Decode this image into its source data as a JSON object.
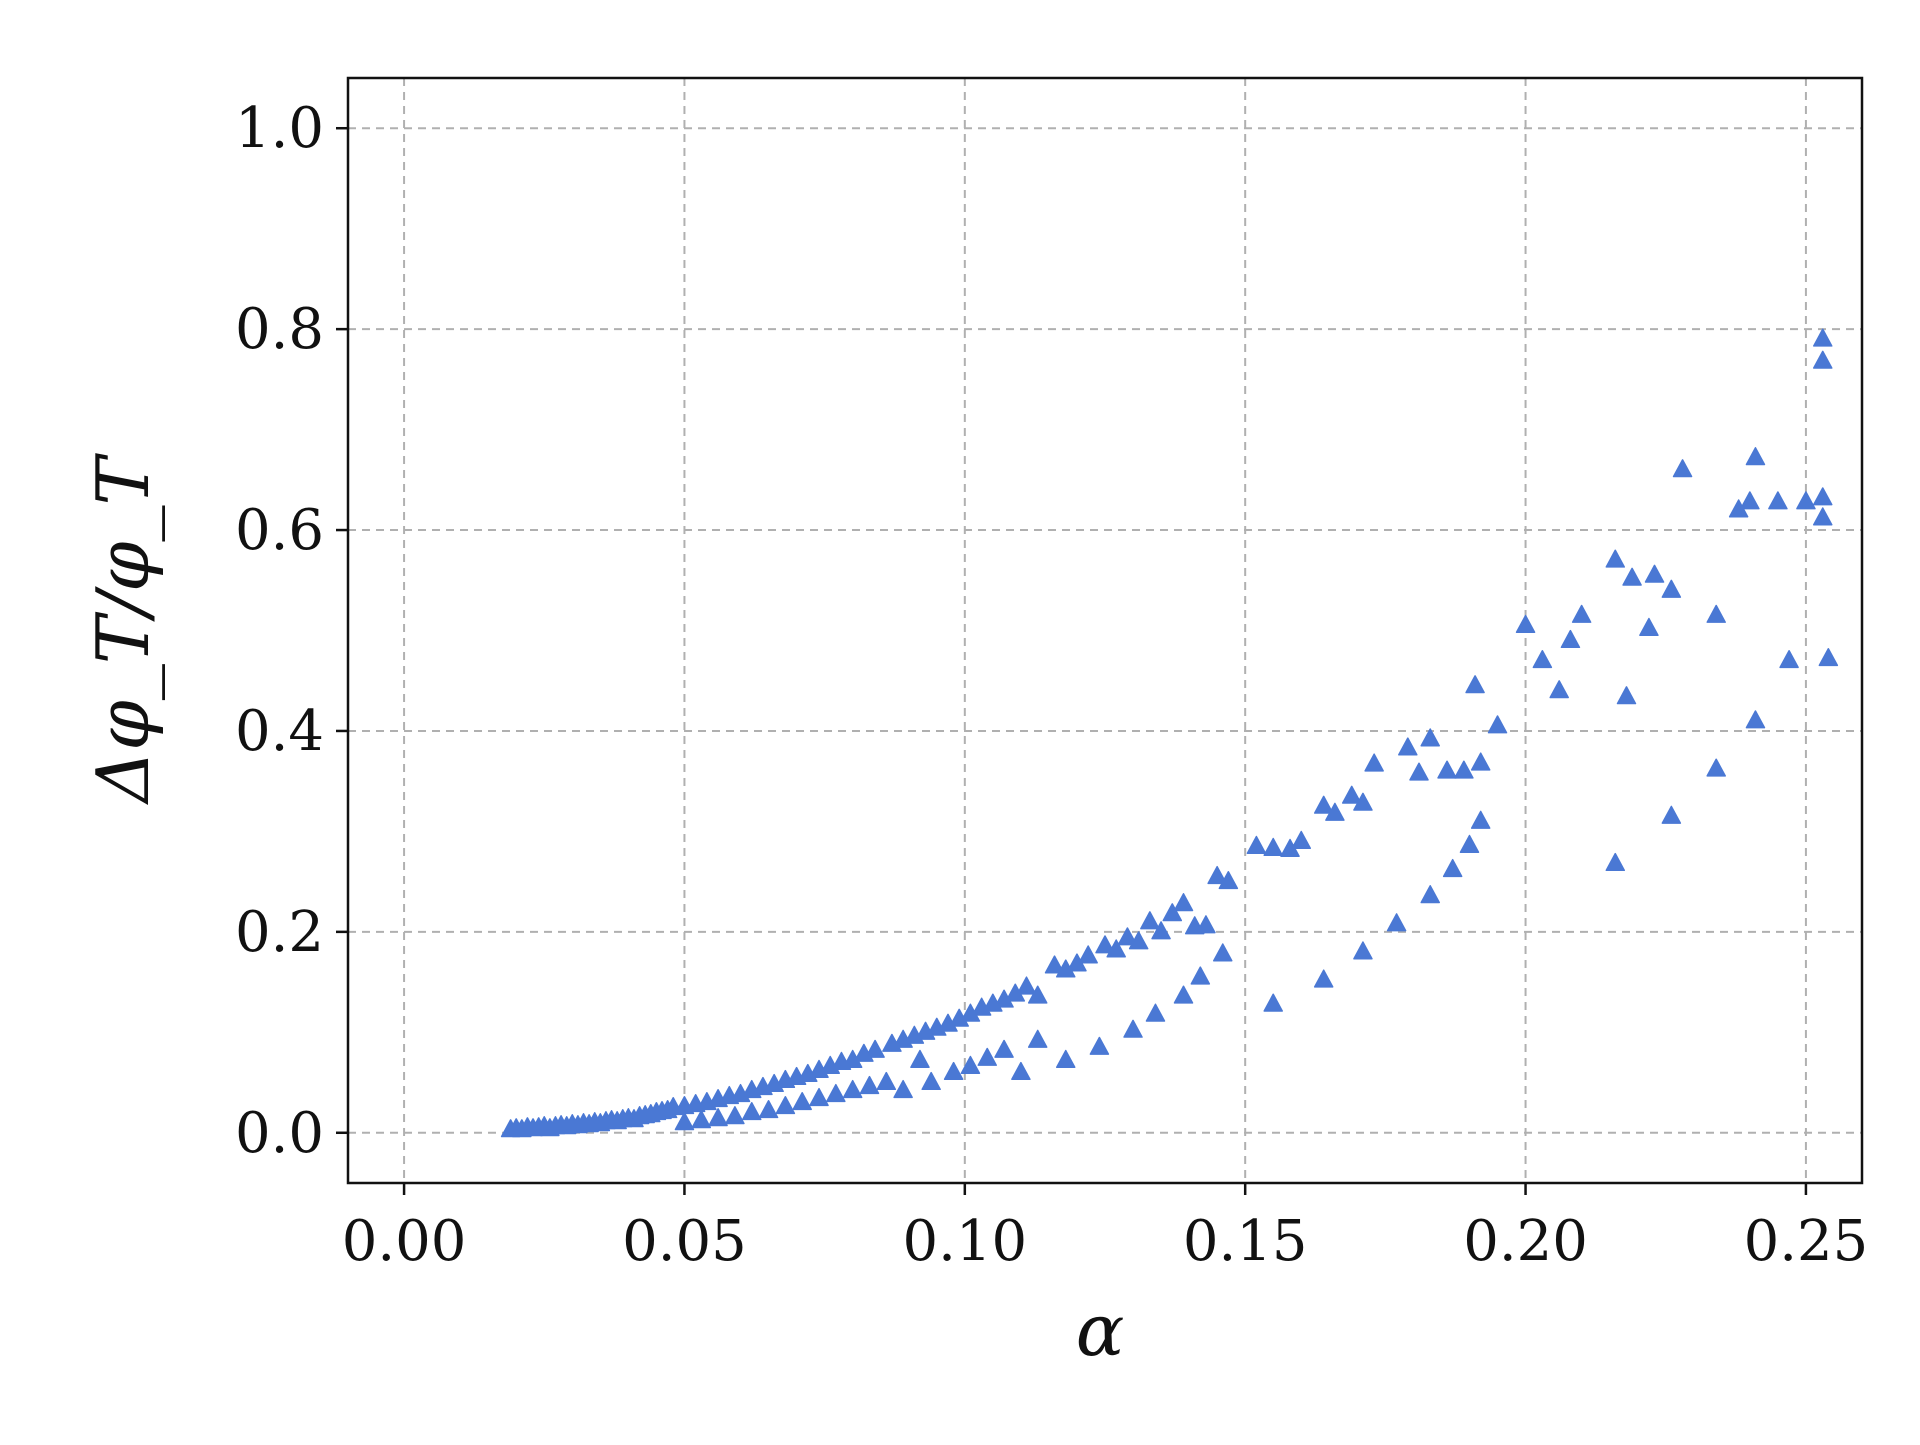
{
  "chart_data": {
    "type": "scatter",
    "title": "",
    "xlabel": "α",
    "ylabel": "Δφ_T/φ_T",
    "xlim": [
      -0.01,
      0.26
    ],
    "ylim": [
      -0.05,
      1.05
    ],
    "xticks": [
      0.0,
      0.05,
      0.1,
      0.15,
      0.2,
      0.25
    ],
    "xtick_labels": [
      "0.00",
      "0.05",
      "0.10",
      "0.15",
      "0.20",
      "0.25"
    ],
    "yticks": [
      0.0,
      0.2,
      0.4,
      0.6,
      0.8,
      1.0
    ],
    "ytick_labels": [
      "0.0",
      "0.2",
      "0.4",
      "0.6",
      "0.8",
      "1.0"
    ],
    "grid": true,
    "marker": "triangle",
    "marker_color": "#4a78d4",
    "series": [
      {
        "name": "",
        "points": [
          [
            0.019,
            0.003
          ],
          [
            0.02,
            0.004
          ],
          [
            0.021,
            0.003
          ],
          [
            0.022,
            0.005
          ],
          [
            0.023,
            0.004
          ],
          [
            0.024,
            0.005
          ],
          [
            0.025,
            0.006
          ],
          [
            0.026,
            0.004
          ],
          [
            0.027,
            0.006
          ],
          [
            0.028,
            0.007
          ],
          [
            0.029,
            0.006
          ],
          [
            0.03,
            0.008
          ],
          [
            0.031,
            0.007
          ],
          [
            0.032,
            0.009
          ],
          [
            0.033,
            0.008
          ],
          [
            0.034,
            0.01
          ],
          [
            0.035,
            0.009
          ],
          [
            0.036,
            0.011
          ],
          [
            0.037,
            0.012
          ],
          [
            0.038,
            0.011
          ],
          [
            0.039,
            0.013
          ],
          [
            0.04,
            0.014
          ],
          [
            0.041,
            0.013
          ],
          [
            0.042,
            0.016
          ],
          [
            0.043,
            0.017
          ],
          [
            0.044,
            0.018
          ],
          [
            0.045,
            0.02
          ],
          [
            0.046,
            0.021
          ],
          [
            0.047,
            0.022
          ],
          [
            0.048,
            0.025
          ],
          [
            0.05,
            0.026
          ],
          [
            0.052,
            0.028
          ],
          [
            0.054,
            0.03
          ],
          [
            0.056,
            0.033
          ],
          [
            0.058,
            0.036
          ],
          [
            0.06,
            0.038
          ],
          [
            0.062,
            0.042
          ],
          [
            0.064,
            0.045
          ],
          [
            0.066,
            0.048
          ],
          [
            0.068,
            0.052
          ],
          [
            0.07,
            0.055
          ],
          [
            0.072,
            0.058
          ],
          [
            0.074,
            0.062
          ],
          [
            0.076,
            0.066
          ],
          [
            0.078,
            0.07
          ],
          [
            0.08,
            0.072
          ],
          [
            0.082,
            0.078
          ],
          [
            0.084,
            0.082
          ],
          [
            0.087,
            0.088
          ],
          [
            0.089,
            0.092
          ],
          [
            0.091,
            0.096
          ],
          [
            0.093,
            0.1
          ],
          [
            0.095,
            0.104
          ],
          [
            0.097,
            0.108
          ],
          [
            0.099,
            0.113
          ],
          [
            0.101,
            0.118
          ],
          [
            0.103,
            0.124
          ],
          [
            0.105,
            0.128
          ],
          [
            0.107,
            0.132
          ],
          [
            0.109,
            0.138
          ],
          [
            0.111,
            0.145
          ],
          [
            0.113,
            0.136
          ],
          [
            0.116,
            0.166
          ],
          [
            0.118,
            0.162
          ],
          [
            0.12,
            0.168
          ],
          [
            0.122,
            0.176
          ],
          [
            0.125,
            0.186
          ],
          [
            0.127,
            0.182
          ],
          [
            0.129,
            0.194
          ],
          [
            0.131,
            0.19
          ],
          [
            0.133,
            0.21
          ],
          [
            0.135,
            0.2
          ],
          [
            0.137,
            0.218
          ],
          [
            0.139,
            0.228
          ],
          [
            0.141,
            0.205
          ],
          [
            0.143,
            0.206
          ],
          [
            0.145,
            0.255
          ],
          [
            0.147,
            0.25
          ],
          [
            0.152,
            0.285
          ],
          [
            0.155,
            0.283
          ],
          [
            0.158,
            0.282
          ],
          [
            0.16,
            0.29
          ],
          [
            0.164,
            0.325
          ],
          [
            0.166,
            0.318
          ],
          [
            0.169,
            0.335
          ],
          [
            0.171,
            0.328
          ],
          [
            0.173,
            0.367
          ],
          [
            0.179,
            0.383
          ],
          [
            0.181,
            0.358
          ],
          [
            0.183,
            0.392
          ],
          [
            0.186,
            0.36
          ],
          [
            0.189,
            0.36
          ],
          [
            0.191,
            0.445
          ],
          [
            0.192,
            0.368
          ],
          [
            0.2,
            0.505
          ],
          [
            0.203,
            0.47
          ],
          [
            0.206,
            0.44
          ],
          [
            0.208,
            0.49
          ],
          [
            0.21,
            0.515
          ],
          [
            0.216,
            0.57
          ],
          [
            0.219,
            0.552
          ],
          [
            0.223,
            0.555
          ],
          [
            0.226,
            0.54
          ],
          [
            0.228,
            0.66
          ],
          [
            0.234,
            0.515
          ],
          [
            0.238,
            0.62
          ],
          [
            0.24,
            0.628
          ],
          [
            0.241,
            0.672
          ],
          [
            0.245,
            0.628
          ],
          [
            0.25,
            0.628
          ],
          [
            0.253,
            0.79
          ],
          [
            0.253,
            0.768
          ],
          [
            0.253,
            0.632
          ],
          [
            0.253,
            0.612
          ],
          [
            0.254,
            0.472
          ],
          [
            0.05,
            0.01
          ],
          [
            0.053,
            0.012
          ],
          [
            0.056,
            0.014
          ],
          [
            0.059,
            0.016
          ],
          [
            0.062,
            0.02
          ],
          [
            0.065,
            0.022
          ],
          [
            0.068,
            0.026
          ],
          [
            0.071,
            0.03
          ],
          [
            0.074,
            0.034
          ],
          [
            0.077,
            0.038
          ],
          [
            0.08,
            0.042
          ],
          [
            0.083,
            0.046
          ],
          [
            0.086,
            0.05
          ],
          [
            0.089,
            0.042
          ],
          [
            0.092,
            0.072
          ],
          [
            0.094,
            0.05
          ],
          [
            0.098,
            0.06
          ],
          [
            0.101,
            0.066
          ],
          [
            0.104,
            0.074
          ],
          [
            0.107,
            0.082
          ],
          [
            0.11,
            0.06
          ],
          [
            0.113,
            0.092
          ],
          [
            0.118,
            0.072
          ],
          [
            0.124,
            0.085
          ],
          [
            0.13,
            0.102
          ],
          [
            0.134,
            0.118
          ],
          [
            0.139,
            0.136
          ],
          [
            0.142,
            0.155
          ],
          [
            0.146,
            0.178
          ],
          [
            0.155,
            0.128
          ],
          [
            0.164,
            0.152
          ],
          [
            0.171,
            0.18
          ],
          [
            0.177,
            0.208
          ],
          [
            0.183,
            0.236
          ],
          [
            0.187,
            0.262
          ],
          [
            0.19,
            0.286
          ],
          [
            0.192,
            0.31
          ],
          [
            0.195,
            0.405
          ],
          [
            0.216,
            0.268
          ],
          [
            0.218,
            0.434
          ],
          [
            0.222,
            0.502
          ],
          [
            0.226,
            0.315
          ],
          [
            0.234,
            0.362
          ],
          [
            0.241,
            0.41
          ],
          [
            0.247,
            0.47
          ]
        ]
      }
    ]
  }
}
